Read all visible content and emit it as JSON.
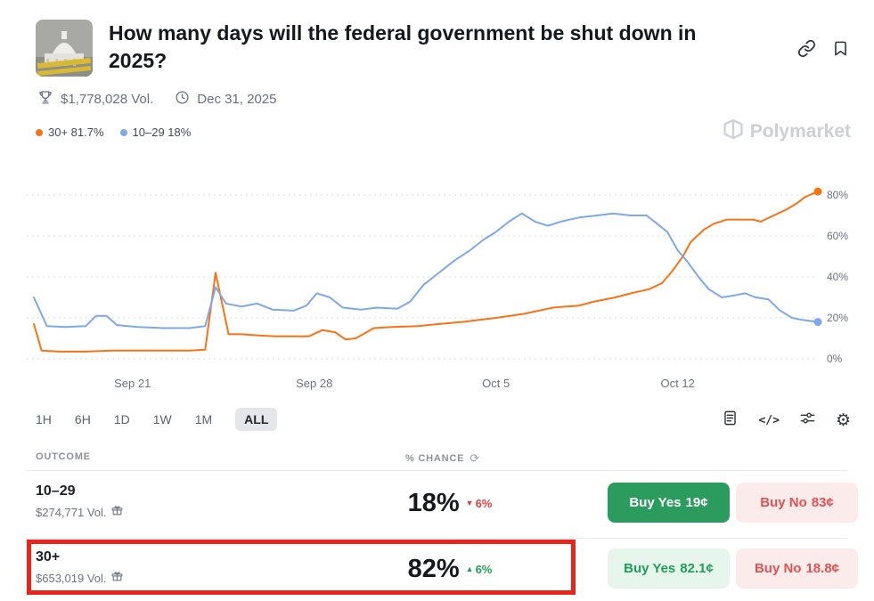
{
  "header": {
    "title": "How many days will the federal government be shut down in 2025?",
    "volume": "$1,778,028 Vol.",
    "end_date": "Dec 31, 2025"
  },
  "legend": [
    {
      "label": "30+ 81.7%",
      "color": "#f97316"
    },
    {
      "label": "10–29 18%",
      "color": "#7da9e8"
    }
  ],
  "watermark": {
    "text": "Polymarket"
  },
  "icons": {
    "code": "</>",
    "gear": "⚙",
    "refresh": "⟳"
  },
  "timeframes": {
    "options": [
      "1H",
      "6H",
      "1D",
      "1W",
      "1M",
      "ALL"
    ],
    "selected": "ALL"
  },
  "chart_data": {
    "type": "line",
    "title": "",
    "xlabel": "",
    "ylabel": "% chance",
    "ylim": [
      0,
      89
    ],
    "grid": "dotted horizontal",
    "legend_position": "top-left",
    "yticks": [
      0,
      20,
      40,
      60,
      80
    ],
    "xticks": [
      {
        "label": "Sep 21",
        "x": 3.8
      },
      {
        "label": "Sep 28",
        "x": 10.8
      },
      {
        "label": "Oct 5",
        "x": 17.8
      },
      {
        "label": "Oct 12",
        "x": 24.8
      }
    ],
    "series": [
      {
        "name": "30+",
        "color": "#f97316",
        "final_value": 81.7,
        "points": [
          [
            0,
            17
          ],
          [
            0.3,
            4
          ],
          [
            1,
            3.5
          ],
          [
            2,
            3.5
          ],
          [
            3,
            4
          ],
          [
            4,
            4
          ],
          [
            5,
            4
          ],
          [
            6,
            4
          ],
          [
            6.6,
            4.5
          ],
          [
            7,
            42
          ],
          [
            7.5,
            12
          ],
          [
            8,
            12
          ],
          [
            8.6,
            11.5
          ],
          [
            9.3,
            11
          ],
          [
            10,
            11
          ],
          [
            10.6,
            11
          ],
          [
            11.1,
            14
          ],
          [
            11.6,
            13
          ],
          [
            12,
            9.5
          ],
          [
            12.4,
            10
          ],
          [
            13.1,
            15
          ],
          [
            13.8,
            15.5
          ],
          [
            14.8,
            16
          ],
          [
            15.6,
            17
          ],
          [
            16.5,
            18
          ],
          [
            17.8,
            20
          ],
          [
            18.9,
            22
          ],
          [
            20,
            25
          ],
          [
            21,
            26
          ],
          [
            21.6,
            28
          ],
          [
            22.4,
            30
          ],
          [
            23,
            32
          ],
          [
            23.7,
            34
          ],
          [
            24.2,
            37
          ],
          [
            24.6,
            43
          ],
          [
            25,
            50
          ],
          [
            25.3,
            57
          ],
          [
            25.8,
            63
          ],
          [
            26.2,
            66
          ],
          [
            26.7,
            68
          ],
          [
            27.3,
            68
          ],
          [
            27.7,
            68
          ],
          [
            28,
            67
          ],
          [
            28.5,
            70
          ],
          [
            29,
            73
          ],
          [
            29.4,
            76
          ],
          [
            29.7,
            79
          ],
          [
            30.2,
            81.7
          ]
        ]
      },
      {
        "name": "10–29",
        "color": "#7da9e8",
        "final_value": 18,
        "points": [
          [
            0,
            30
          ],
          [
            0.5,
            16
          ],
          [
            1.2,
            15.5
          ],
          [
            2,
            16
          ],
          [
            2.4,
            21
          ],
          [
            2.8,
            21
          ],
          [
            3.2,
            16.5
          ],
          [
            4,
            15.5
          ],
          [
            5,
            15
          ],
          [
            6,
            15
          ],
          [
            6.6,
            16
          ],
          [
            7,
            35
          ],
          [
            7.4,
            27
          ],
          [
            8,
            25.5
          ],
          [
            8.6,
            27
          ],
          [
            9.2,
            24
          ],
          [
            10,
            23.5
          ],
          [
            10.5,
            26
          ],
          [
            10.9,
            32
          ],
          [
            11.4,
            30
          ],
          [
            11.9,
            25
          ],
          [
            12.6,
            24
          ],
          [
            13.2,
            25
          ],
          [
            14,
            24.5
          ],
          [
            14.5,
            28
          ],
          [
            15,
            36
          ],
          [
            15.6,
            42
          ],
          [
            16.2,
            48
          ],
          [
            16.8,
            53
          ],
          [
            17.3,
            58
          ],
          [
            17.8,
            62
          ],
          [
            18.3,
            67
          ],
          [
            18.8,
            71
          ],
          [
            19.3,
            67
          ],
          [
            19.8,
            65
          ],
          [
            20.3,
            67
          ],
          [
            21,
            69
          ],
          [
            21.7,
            70
          ],
          [
            22.3,
            71
          ],
          [
            23,
            70
          ],
          [
            23.6,
            70
          ],
          [
            24,
            66
          ],
          [
            24.4,
            62
          ],
          [
            24.8,
            53
          ],
          [
            25.2,
            47
          ],
          [
            25.6,
            40
          ],
          [
            26,
            34
          ],
          [
            26.5,
            30
          ],
          [
            27,
            31
          ],
          [
            27.4,
            32
          ],
          [
            27.8,
            30
          ],
          [
            28.3,
            29
          ],
          [
            28.7,
            24
          ],
          [
            29.2,
            20
          ],
          [
            29.6,
            19
          ],
          [
            30.2,
            18
          ]
        ]
      }
    ]
  },
  "table": {
    "outcome_header": "OUTCOME",
    "chance_header": "% CHANCE",
    "rows": [
      {
        "name": "10–29",
        "volume": "$274,771 Vol.",
        "chance": "18%",
        "change": "6%",
        "change_dir": "down",
        "change_arrow": "▼",
        "buy_yes": {
          "label": "Buy Yes",
          "price": "19¢"
        },
        "buy_no": {
          "label": "Buy No",
          "price": "83¢"
        }
      },
      {
        "name": "30+",
        "volume": "$653,019 Vol.",
        "chance": "82%",
        "change": "6%",
        "change_dir": "up",
        "change_arrow": "▲",
        "buy_yes": {
          "label": "Buy Yes",
          "price": "82.1¢"
        },
        "buy_no": {
          "label": "Buy No",
          "price": "18.8¢"
        }
      }
    ]
  }
}
